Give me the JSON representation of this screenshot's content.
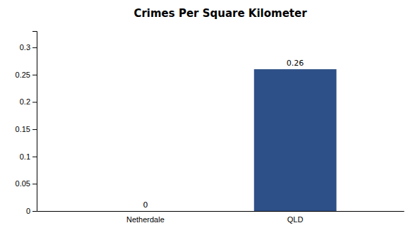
{
  "chart_data": {
    "type": "bar",
    "title": "Crimes Per Square Kilometer",
    "categories": [
      "Netherdale",
      "QLD"
    ],
    "values": [
      0,
      0.26
    ],
    "color": "#2e5088",
    "ylim": [
      0,
      0.33
    ],
    "yticks": [
      0,
      0.05,
      0.1,
      0.15,
      0.2,
      0.25,
      0.3
    ],
    "grid": false,
    "data_labels": true
  }
}
